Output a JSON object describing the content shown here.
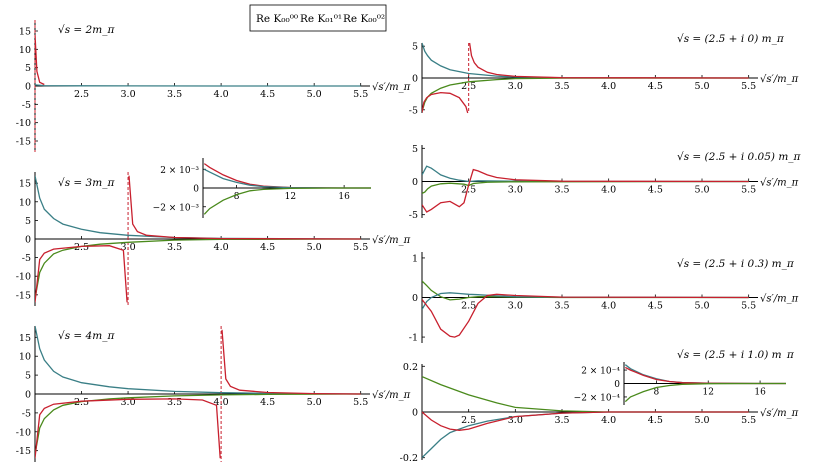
{
  "legend": {
    "entries": [
      {
        "label": "Re K₀₀⁰⁰",
        "color": "#c8202e"
      },
      {
        "label": "Re K₀₁⁰¹",
        "color": "#4a8a1c"
      },
      {
        "label": "Re K₀₀⁰²",
        "color": "#3a7f86"
      }
    ]
  },
  "chart_data": [
    {
      "id": "L1",
      "type": "line",
      "title": "√s = 2m_π",
      "xlabel": "√s′/m_π",
      "xlim": [
        2.0,
        5.6
      ],
      "ylim": [
        -18,
        18
      ],
      "xticks": [
        "2.5",
        "3.0",
        "3.5",
        "4.0",
        "4.5",
        "5.0",
        "5.5"
      ],
      "yticks": [
        "15",
        "10",
        "5",
        "0",
        "-5",
        "-10",
        "-15"
      ],
      "pole": 2.0,
      "series": [
        {
          "color": "#3a7f86",
          "x": [
            2.0,
            2.1,
            2.5,
            3.0,
            4.0,
            5.5
          ],
          "y": [
            0.3,
            0.1,
            0.05,
            0.02,
            0.01,
            0
          ]
        },
        {
          "color": "#c8202e",
          "x": [
            2.0,
            2.02,
            2.05,
            2.1
          ],
          "y": [
            14,
            4,
            1,
            0.4
          ]
        }
      ]
    },
    {
      "id": "L2",
      "type": "line",
      "title": "√s = 3m_π",
      "xlabel": "√s′/m_π",
      "xlim": [
        2.0,
        5.6
      ],
      "ylim": [
        -18,
        18
      ],
      "xticks": [
        "2.5",
        "3.0",
        "3.5",
        "4.0",
        "4.5",
        "5.0",
        "5.5"
      ],
      "yticks": [
        "15",
        "10",
        "5",
        "0",
        "-5",
        "-10",
        "-15"
      ],
      "pole": 3.0,
      "series": [
        {
          "color": "#3a7f86",
          "x": [
            2.0,
            2.05,
            2.1,
            2.2,
            2.3,
            2.5,
            2.7,
            3.0,
            3.5,
            4.0,
            5.5
          ],
          "y": [
            17,
            11,
            8,
            5.5,
            4,
            2.6,
            1.7,
            1.0,
            0.4,
            0.15,
            0
          ]
        },
        {
          "color": "#4a8a1c",
          "x": [
            2.0,
            2.05,
            2.1,
            2.2,
            2.3,
            2.5,
            2.7,
            3.0,
            3.5,
            4.0,
            5.5
          ],
          "y": [
            -16,
            -9,
            -6.5,
            -4,
            -3,
            -2,
            -1.4,
            -0.9,
            -0.3,
            -0.1,
            0
          ]
        },
        {
          "color": "#c8202e",
          "x": [
            2.0,
            2.05,
            2.1,
            2.2,
            2.5,
            2.8,
            2.95,
            2.99
          ],
          "y": [
            -17,
            -5.5,
            -3.8,
            -2.7,
            -2,
            -1.8,
            -3,
            -17
          ]
        },
        {
          "color": "#c8202e",
          "x": [
            3.01,
            3.05,
            3.1,
            3.2,
            3.5,
            4.0,
            5.5
          ],
          "y": [
            17,
            4,
            2,
            1,
            0.4,
            0.1,
            0
          ]
        }
      ]
    },
    {
      "id": "L2inset",
      "type": "line",
      "title": "",
      "xlabel": "",
      "xlim": [
        5.5,
        18
      ],
      "ylim": [
        -0.0032,
        0.0032
      ],
      "xticks": [
        "8",
        "12",
        "16"
      ],
      "yticks": [
        "2 × 10⁻³",
        "0",
        "−2 × 10⁻³"
      ],
      "series": [
        {
          "color": "#c8202e",
          "x": [
            5.6,
            6,
            7,
            8,
            9,
            10,
            12,
            16,
            18
          ],
          "y": [
            0.0026,
            0.0022,
            0.0014,
            0.0008,
            0.0004,
            0.0002,
            5e-05,
            0,
            0
          ]
        },
        {
          "color": "#3a7f86",
          "x": [
            5.6,
            6,
            7,
            8,
            9,
            10,
            12,
            16,
            18
          ],
          "y": [
            0.002,
            0.0017,
            0.001,
            0.0006,
            0.0003,
            0.00015,
            4e-05,
            0,
            0
          ]
        },
        {
          "color": "#4a8a1c",
          "x": [
            5.6,
            6,
            7,
            8,
            9,
            10,
            12,
            16,
            18
          ],
          "y": [
            -0.0028,
            -0.0022,
            -0.0013,
            -0.0007,
            -0.0003,
            -0.00015,
            -4e-05,
            0,
            0
          ]
        }
      ]
    },
    {
      "id": "L3",
      "type": "line",
      "title": "√s = 4m_π",
      "xlabel": "√s′/m_π",
      "xlim": [
        2.0,
        5.6
      ],
      "ylim": [
        -18,
        18
      ],
      "xticks": [
        "2.5",
        "3.0",
        "3.5",
        "4.0",
        "4.5",
        "5.0",
        "5.5"
      ],
      "yticks": [
        "15",
        "10",
        "5",
        "0",
        "-5",
        "-10",
        "-15"
      ],
      "pole": 4.0,
      "series": [
        {
          "color": "#3a7f86",
          "x": [
            2.0,
            2.05,
            2.1,
            2.2,
            2.3,
            2.5,
            2.8,
            3.0,
            3.5,
            4.0,
            4.5,
            5.5
          ],
          "y": [
            18,
            12,
            9,
            6,
            4.5,
            3,
            1.9,
            1.4,
            0.7,
            0.35,
            0.15,
            0
          ]
        },
        {
          "color": "#4a8a1c",
          "x": [
            2.0,
            2.05,
            2.1,
            2.2,
            2.3,
            2.5,
            2.8,
            3.0,
            3.5,
            4.0,
            4.5,
            5.5
          ],
          "y": [
            -16,
            -9,
            -6.5,
            -4.2,
            -3,
            -2,
            -1.3,
            -1,
            -0.5,
            -0.25,
            -0.1,
            0
          ]
        },
        {
          "color": "#c8202e",
          "x": [
            2.0,
            2.05,
            2.1,
            2.2,
            2.5,
            3.0,
            3.5,
            3.8,
            3.95,
            3.99
          ],
          "y": [
            -17,
            -5.5,
            -3.8,
            -2.7,
            -1.9,
            -1.4,
            -1.3,
            -1.6,
            -3,
            -17
          ]
        },
        {
          "color": "#c8202e",
          "x": [
            4.01,
            4.05,
            4.1,
            4.2,
            4.5,
            5.0,
            5.5
          ],
          "y": [
            17,
            4,
            2,
            1,
            0.4,
            0.1,
            0
          ]
        }
      ]
    },
    {
      "id": "R1",
      "type": "line",
      "title": "√s = (2.5 + i 0) m_π",
      "xlabel": "√s′/m_π",
      "xlim": [
        2.0,
        5.6
      ],
      "ylim": [
        -5.5,
        5.5
      ],
      "xticks": [
        "2.5",
        "3.0",
        "3.5",
        "4.0",
        "4.5",
        "5.0",
        "5.5"
      ],
      "yticks": [
        "5",
        "0",
        "-5"
      ],
      "pole": 2.5,
      "series": [
        {
          "color": "#3a7f86",
          "x": [
            2.0,
            2.03,
            2.06,
            2.1,
            2.2,
            2.3,
            2.5,
            2.8,
            3.0,
            3.5,
            5.5
          ],
          "y": [
            5.5,
            4.2,
            3.5,
            2.8,
            1.9,
            1.3,
            0.7,
            0.3,
            0.15,
            0.03,
            0
          ]
        },
        {
          "color": "#4a8a1c",
          "x": [
            2.0,
            2.03,
            2.06,
            2.1,
            2.2,
            2.3,
            2.5,
            2.8,
            3.0,
            3.5,
            5.5
          ],
          "y": [
            -5.3,
            -3.8,
            -3,
            -2.4,
            -1.6,
            -1.1,
            -0.6,
            -0.25,
            -0.1,
            -0.02,
            0
          ]
        },
        {
          "color": "#c8202e",
          "x": [
            2.0,
            2.02,
            2.05,
            2.1,
            2.2,
            2.3,
            2.4,
            2.47,
            2.49
          ],
          "y": [
            -5.4,
            -3.8,
            -3.1,
            -2.6,
            -2.3,
            -2.4,
            -3.1,
            -4.5,
            -5.5
          ]
        },
        {
          "color": "#c8202e",
          "x": [
            2.51,
            2.53,
            2.56,
            2.6,
            2.7,
            2.8,
            3.0,
            3.5,
            5.5
          ],
          "y": [
            5.5,
            3.5,
            2.4,
            1.7,
            0.9,
            0.55,
            0.25,
            0.05,
            0
          ]
        }
      ]
    },
    {
      "id": "R2",
      "type": "line",
      "title": "√s = (2.5 + i 0.05) m_π",
      "xlabel": "√s′/m_π",
      "xlim": [
        2.0,
        5.6
      ],
      "ylim": [
        -5.5,
        5.5
      ],
      "xticks": [
        "2.5",
        "3.0",
        "3.5",
        "4.0",
        "4.5",
        "5.0",
        "5.5"
      ],
      "yticks": [
        "5",
        "0",
        "-5"
      ],
      "series": [
        {
          "color": "#3a7f86",
          "x": [
            2.0,
            2.05,
            2.1,
            2.15,
            2.2,
            2.3,
            2.4,
            2.5,
            2.6,
            3.0,
            3.5,
            5.5
          ],
          "y": [
            1.0,
            2.3,
            2.0,
            1.5,
            1.0,
            0.5,
            0.2,
            0.0,
            0.1,
            0.05,
            0,
            0
          ]
        },
        {
          "color": "#4a8a1c",
          "x": [
            2.0,
            2.03,
            2.06,
            2.1,
            2.2,
            2.3,
            2.45,
            2.5,
            2.55,
            2.7,
            3.0,
            5.5
          ],
          "y": [
            -1.8,
            -1.6,
            -1.1,
            -0.7,
            -0.35,
            -0.25,
            -0.4,
            -0.6,
            -0.3,
            -0.1,
            -0.05,
            0
          ]
        },
        {
          "color": "#c8202e",
          "x": [
            2.0,
            2.05,
            2.1,
            2.2,
            2.3,
            2.4,
            2.45,
            2.5,
            2.55,
            2.6,
            2.7,
            2.8,
            3.0,
            3.5,
            5.5
          ],
          "y": [
            -3.5,
            -4.6,
            -4.2,
            -3.2,
            -3.0,
            -3.8,
            -3.2,
            -0.5,
            1.8,
            1.6,
            1.0,
            0.6,
            0.25,
            0.05,
            0
          ]
        }
      ]
    },
    {
      "id": "R3",
      "type": "line",
      "title": "√s = (2.5 + i 0.3) m_π",
      "xlabel": "√s′/m_π",
      "xlim": [
        2.0,
        5.6
      ],
      "ylim": [
        -1.15,
        1.15
      ],
      "xticks": [
        "2.5",
        "3.0",
        "3.5",
        "4.0",
        "4.5",
        "5.0",
        "5.5"
      ],
      "yticks": [
        "1",
        "0",
        "-1"
      ],
      "series": [
        {
          "color": "#4a8a1c",
          "x": [
            2.0,
            2.05,
            2.1,
            2.2,
            2.3,
            2.4,
            2.5,
            2.6,
            2.8,
            3.0,
            3.5,
            5.5
          ],
          "y": [
            0.42,
            0.3,
            0.18,
            0.02,
            -0.06,
            -0.04,
            0.0,
            0.02,
            0.02,
            0.01,
            0,
            0
          ]
        },
        {
          "color": "#3a7f86",
          "x": [
            2.0,
            2.05,
            2.1,
            2.2,
            2.3,
            2.4,
            2.5,
            2.6,
            2.8,
            3.0,
            3.5,
            5.5
          ],
          "y": [
            -0.3,
            -0.1,
            0.0,
            0.1,
            0.12,
            0.1,
            0.08,
            0.07,
            0.04,
            0.02,
            0.01,
            0
          ]
        },
        {
          "color": "#c8202e",
          "x": [
            2.0,
            2.1,
            2.2,
            2.3,
            2.35,
            2.4,
            2.5,
            2.6,
            2.7,
            2.8,
            3.0,
            3.5,
            5.5
          ],
          "y": [
            -0.05,
            -0.35,
            -0.8,
            -0.98,
            -1.0,
            -0.95,
            -0.6,
            -0.15,
            0.05,
            0.08,
            0.05,
            0.01,
            0
          ]
        }
      ]
    },
    {
      "id": "R4",
      "type": "line",
      "title": "√s = (2.5 + i 1.0) m_π",
      "xlabel": "√s′/m_π",
      "xlim": [
        2.0,
        5.6
      ],
      "ylim": [
        -0.21,
        0.21
      ],
      "xticks": [
        "2.5",
        "3.0",
        "3.5",
        "4.0",
        "4.5",
        "5.0",
        "5.5"
      ],
      "yticks": [
        "0.2",
        "0",
        "-0.2"
      ],
      "series": [
        {
          "color": "#4a8a1c",
          "x": [
            2.0,
            2.2,
            2.5,
            2.8,
            3.0,
            3.5,
            4.0,
            4.5,
            5.0,
            5.5
          ],
          "y": [
            0.155,
            0.12,
            0.075,
            0.04,
            0.02,
            0.005,
            0,
            0,
            0,
            0
          ]
        },
        {
          "color": "#3a7f86",
          "x": [
            2.0,
            2.1,
            2.2,
            2.3,
            2.4,
            2.5,
            2.7,
            3.0,
            3.5,
            4.0,
            5.5
          ],
          "y": [
            -0.2,
            -0.16,
            -0.12,
            -0.09,
            -0.075,
            -0.06,
            -0.04,
            -0.02,
            -0.005,
            0,
            0
          ]
        },
        {
          "color": "#c8202e",
          "x": [
            2.0,
            2.1,
            2.2,
            2.3,
            2.4,
            2.5,
            2.7,
            3.0,
            3.5,
            4.0,
            5.5
          ],
          "y": [
            0.0,
            -0.035,
            -0.06,
            -0.075,
            -0.08,
            -0.075,
            -0.05,
            -0.02,
            -0.005,
            0,
            0
          ]
        }
      ]
    },
    {
      "id": "R4inset",
      "type": "line",
      "title": "",
      "xlabel": "",
      "xlim": [
        5.5,
        18
      ],
      "ylim": [
        -0.00032,
        0.00032
      ],
      "xticks": [
        "8",
        "12",
        "16"
      ],
      "yticks": [
        "2 × 10⁻⁴",
        "0",
        "−2 × 10⁻⁴"
      ],
      "series": [
        {
          "color": "#3a7f86",
          "x": [
            5.6,
            6,
            7,
            8,
            9,
            10,
            12,
            16,
            18
          ],
          "y": [
            0.00028,
            0.00022,
            0.00013,
            7e-05,
            3e-05,
            1.5e-05,
            4e-06,
            0,
            0
          ]
        },
        {
          "color": "#c8202e",
          "x": [
            5.6,
            6,
            7,
            8,
            9,
            10,
            12,
            16,
            18
          ],
          "y": [
            0.00024,
            0.0002,
            0.00012,
            6e-05,
            3e-05,
            1.2e-05,
            3e-06,
            0,
            0
          ]
        },
        {
          "color": "#4a8a1c",
          "x": [
            5.6,
            6,
            7,
            8,
            9,
            10,
            12,
            16,
            18
          ],
          "y": [
            -0.00027,
            -0.0002,
            -0.00012,
            -6e-05,
            -3e-05,
            -1.2e-05,
            -3e-06,
            0,
            0
          ]
        }
      ]
    }
  ]
}
